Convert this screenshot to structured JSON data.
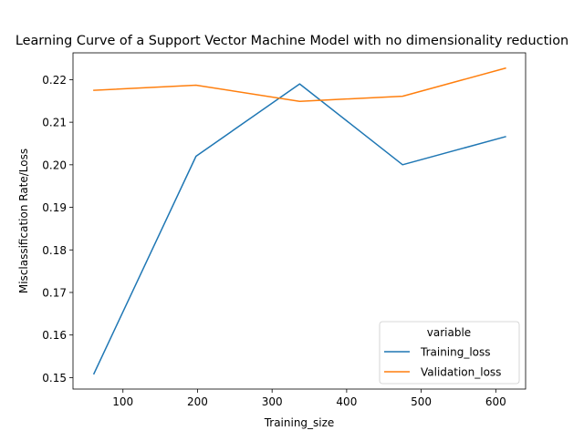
{
  "chart_data": {
    "type": "line",
    "title": "Learning Curve of a Support Vector Machine Model with no dimensionality reduction",
    "xlabel": "Training_size",
    "ylabel": "Misclassification Rate/Loss",
    "xlim": [
      33,
      640
    ],
    "ylim": [
      0.1473,
      0.2263
    ],
    "x_ticks": [
      100,
      200,
      300,
      400,
      500,
      600
    ],
    "y_ticks": [
      0.15,
      0.16,
      0.17,
      0.18,
      0.19,
      0.2,
      0.21,
      0.22
    ],
    "y_tick_labels": [
      "0.15",
      "0.16",
      "0.17",
      "0.18",
      "0.19",
      "0.20",
      "0.21",
      "0.22"
    ],
    "x": [
      61,
      198,
      337,
      475,
      613
    ],
    "series": [
      {
        "name": "Training_loss",
        "color": "#1f77b4",
        "values": [
          0.1509,
          0.202,
          0.219,
          0.2,
          0.2066
        ]
      },
      {
        "name": "Validation_loss",
        "color": "#ff7f0e",
        "values": [
          0.2175,
          0.2187,
          0.2149,
          0.2161,
          0.2227
        ]
      }
    ],
    "legend": {
      "title": "variable",
      "placement": "lower right"
    },
    "grid": false
  }
}
